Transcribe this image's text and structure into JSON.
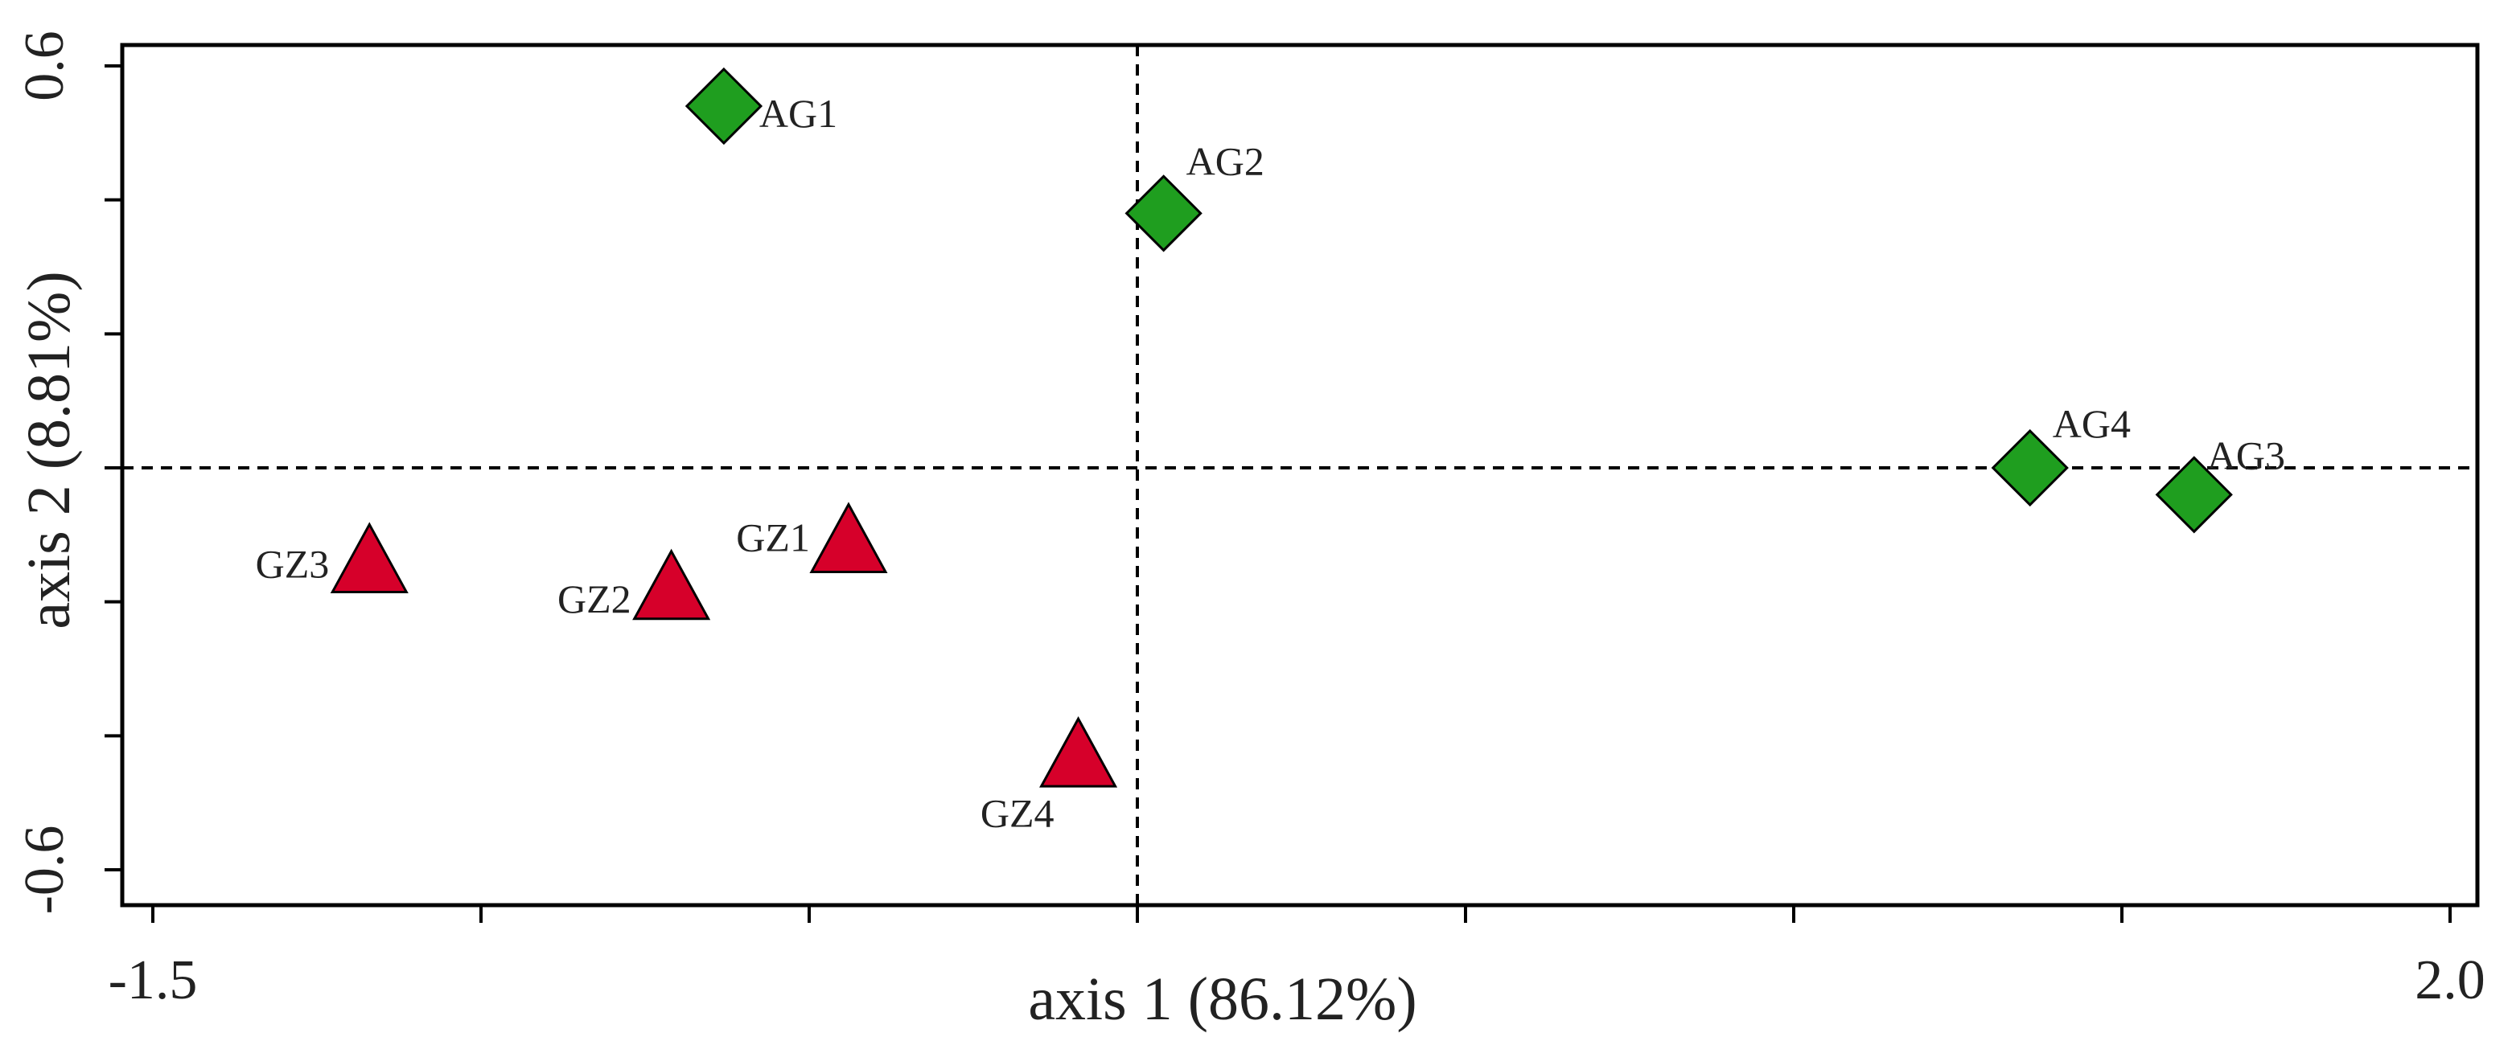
{
  "chart_data": {
    "type": "scatter",
    "title": "",
    "xlabel": "axis 1 (86.12%)",
    "ylabel": "axis 2 (8.81%)",
    "xlim": [
      -1.5,
      2.0
    ],
    "ylim": [
      -0.6,
      0.6
    ],
    "x_tick_labels": [
      {
        "value": -1.5,
        "label": "-1.5"
      },
      {
        "value": 2.0,
        "label": "2.0"
      }
    ],
    "y_tick_labels": [
      {
        "value": 0.6,
        "label": "0.6"
      },
      {
        "value": -0.6,
        "label": "-0.6"
      }
    ],
    "x_minor_ticks": [
      -1.5,
      -1.0,
      -0.5,
      0.0,
      0.5,
      1.0,
      1.5,
      2.0
    ],
    "y_minor_ticks": [
      0.6,
      0.4,
      0.2,
      0.0,
      -0.2,
      -0.4,
      -0.6
    ],
    "reference_lines": {
      "x": 0,
      "y": 0,
      "style": "dashed"
    },
    "grid": false,
    "legend": "none",
    "series": [
      {
        "marker": "diamond",
        "color": "#1f9e1f",
        "points": [
          {
            "label": "AG1",
            "x": -0.63,
            "y": 0.54
          },
          {
            "label": "AG2",
            "x": 0.04,
            "y": 0.38
          },
          {
            "label": "AG4",
            "x": 1.36,
            "y": 0.0
          },
          {
            "label": "AG3",
            "x": 1.61,
            "y": -0.04
          }
        ]
      },
      {
        "marker": "triangle",
        "color": "#d6002a",
        "points": [
          {
            "label": "GZ3",
            "x": -1.17,
            "y": -0.14
          },
          {
            "label": "GZ2",
            "x": -0.71,
            "y": -0.18
          },
          {
            "label": "GZ1",
            "x": -0.44,
            "y": -0.11
          },
          {
            "label": "GZ4",
            "x": -0.09,
            "y": -0.43
          }
        ]
      }
    ]
  }
}
